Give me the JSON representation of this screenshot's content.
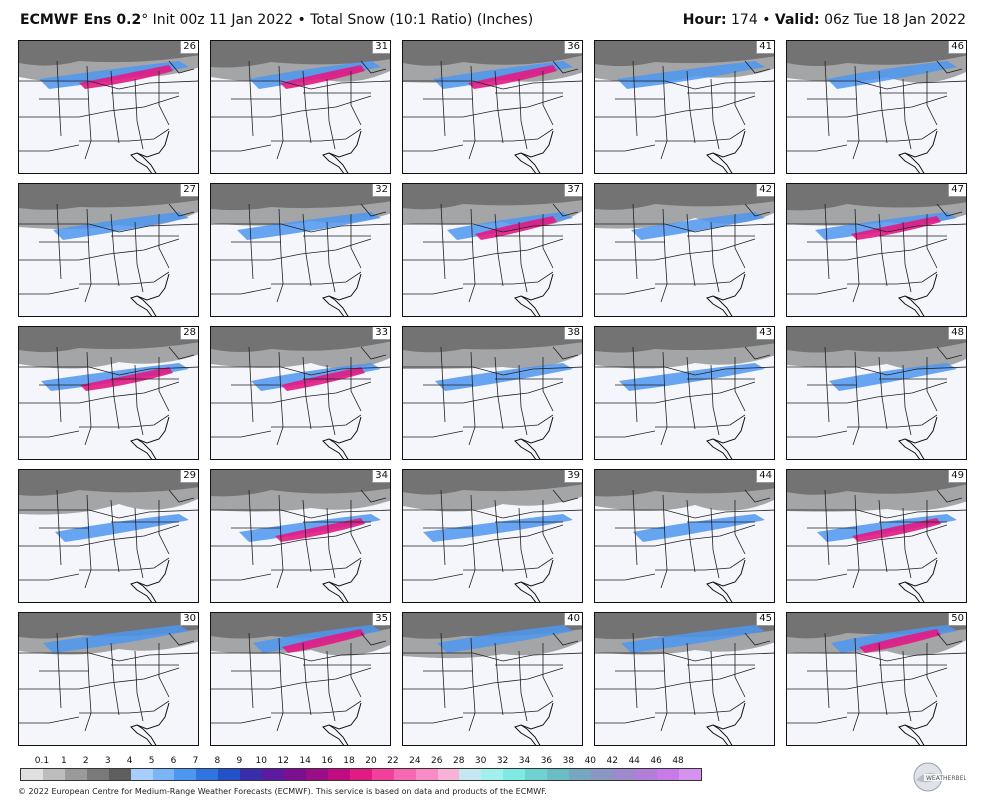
{
  "header": {
    "model": "ECMWF Ens 0.2",
    "degree": "°",
    "init": "Init 00z 11 Jan 2022",
    "bullet": "•",
    "product": "Total Snow (10:1 Ratio) (Inches)",
    "hour_label": "Hour:",
    "hour_value": "174",
    "valid_label": "Valid:",
    "valid_value": "06z Tue 18 Jan 2022"
  },
  "members": [
    [
      26,
      31,
      36,
      41,
      46
    ],
    [
      27,
      32,
      37,
      42,
      47
    ],
    [
      28,
      33,
      38,
      43,
      48
    ],
    [
      29,
      34,
      39,
      44,
      49
    ],
    [
      30,
      35,
      40,
      45,
      50
    ]
  ],
  "legend": {
    "labels": [
      "0.1",
      "1",
      "2",
      "3",
      "4",
      "5",
      "6",
      "7",
      "8",
      "9",
      "10",
      "12",
      "14",
      "16",
      "18",
      "20",
      "22",
      "24",
      "26",
      "28",
      "30",
      "32",
      "34",
      "36",
      "38",
      "40",
      "42",
      "44",
      "46",
      "48"
    ],
    "colors": [
      "#e0e0e0",
      "#bdbdbd",
      "#9a9a9a",
      "#7a7a7a",
      "#5e5e5e",
      "#a8cffb",
      "#7ab6f7",
      "#4d97f0",
      "#2f74e0",
      "#2352c8",
      "#3a2dab",
      "#5d1aa0",
      "#7b0f90",
      "#9a0d86",
      "#c00c80",
      "#e31a84",
      "#f2419c",
      "#f768b3",
      "#f98cc8",
      "#f7b2d8",
      "#c4e8f2",
      "#a2f0ee",
      "#7fe9e4",
      "#6ed2d2",
      "#6abcc5",
      "#75a7bf",
      "#8a97c2",
      "#9e89cc",
      "#b27ed8",
      "#c87ae8"
    ],
    "colors_last": "#d692f0"
  },
  "credit": "© 2022 European Centre for Medium-Range Weather Forecasts (ECMWF). This service is based on data and products of the ECMWF."
}
